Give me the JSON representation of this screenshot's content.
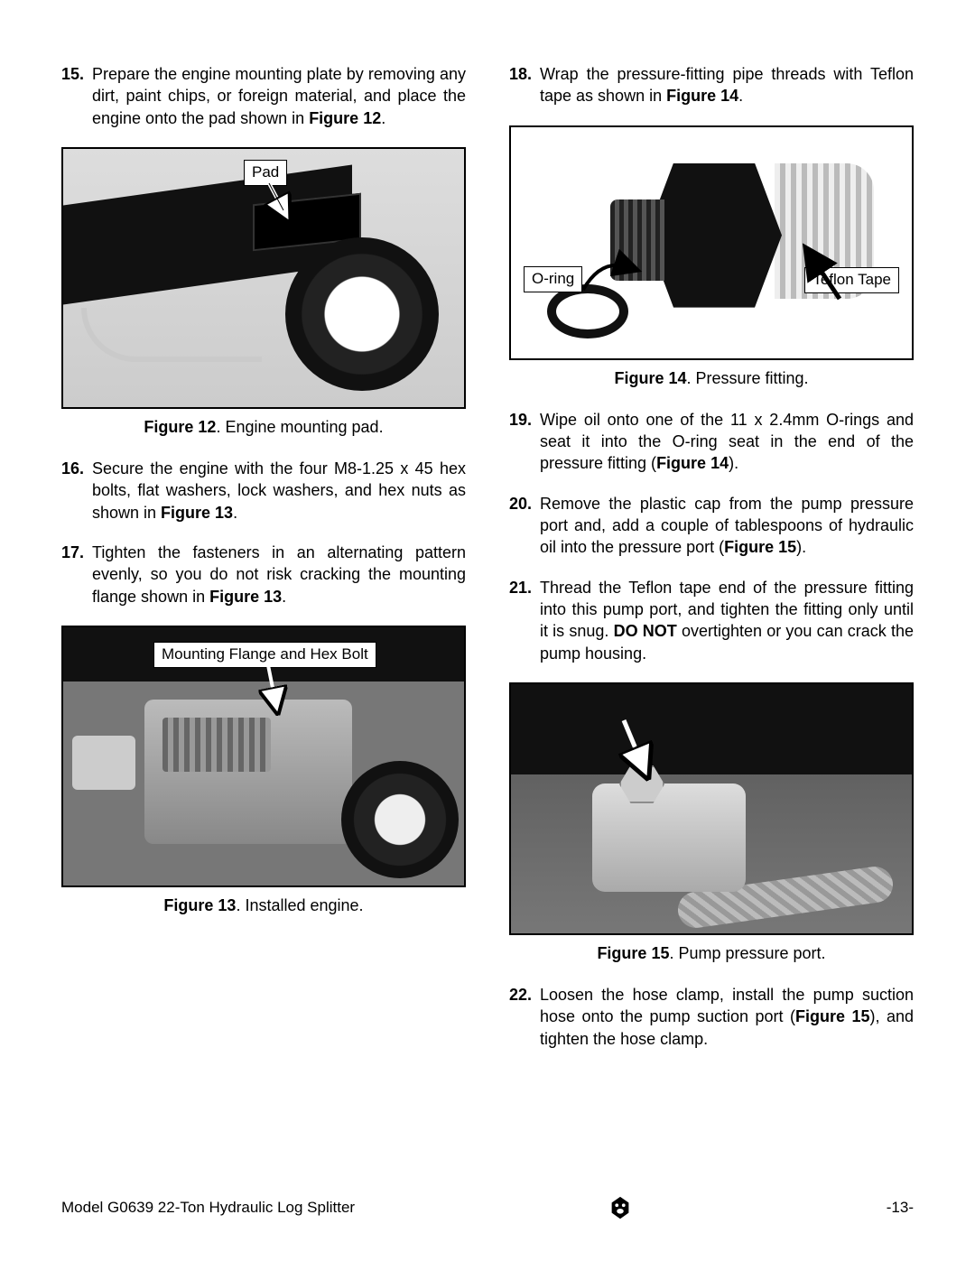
{
  "left": {
    "steps": [
      {
        "num": "15.",
        "html": "Prepare the engine mounting plate by removing any dirt, paint chips, or foreign material, and place the engine onto the pad shown in <b>Figure 12</b>."
      },
      {
        "num": "16.",
        "html": "Secure the engine with the four M8-1.25 x 45 hex bolts, flat washers, lock washers, and hex nuts as shown in <b>Figure 13</b>."
      },
      {
        "num": "17.",
        "html": "Tighten the fasteners in an alternating pattern evenly, so you do not risk cracking the mounting flange shown in <b>Figure 13</b>."
      }
    ],
    "fig12": {
      "label_pad": "Pad",
      "caption_bold": "Figure 12",
      "caption_rest": ". Engine mounting pad."
    },
    "fig13": {
      "label_flange": "Mounting Flange and Hex Bolt",
      "caption_bold": "Figure 13",
      "caption_rest": ". Installed engine."
    }
  },
  "right": {
    "steps_a": [
      {
        "num": "18.",
        "html": "Wrap the pressure-fitting pipe threads with Teflon tape as shown in <b>Figure 14</b>."
      }
    ],
    "fig14": {
      "label_oring": "O-ring",
      "label_tape": "Teflon Tape",
      "caption_bold": "Figure 14",
      "caption_rest": ". Pressure fitting."
    },
    "steps_b": [
      {
        "num": "19.",
        "html": "Wipe oil onto one of the 11 x 2.4mm O-rings and seat it into the O-ring seat in the end of the pressure fitting (<b>Figure 14</b>)."
      },
      {
        "num": "20.",
        "html": "Remove the plastic cap from the pump pressure port and, add a couple of tablespoons of hydraulic oil into the pressure port (<b>Figure 15</b>)."
      },
      {
        "num": "21.",
        "html": "Thread the Teflon tape end of the pressure fitting into this pump port, and tighten the fitting only until it is snug. <b>DO NOT</b> overtighten or you can crack the pump housing."
      }
    ],
    "fig15": {
      "caption_bold": "Figure 15",
      "caption_rest": ". Pump pressure port."
    },
    "steps_c": [
      {
        "num": "22.",
        "html": "Loosen the hose clamp, install the pump suction hose onto the pump suction port (<b>Figure 15</b>), and tighten the hose clamp."
      }
    ]
  },
  "footer": {
    "left": "Model G0639 22-Ton Hydraulic Log Splitter",
    "right": "-13-"
  }
}
